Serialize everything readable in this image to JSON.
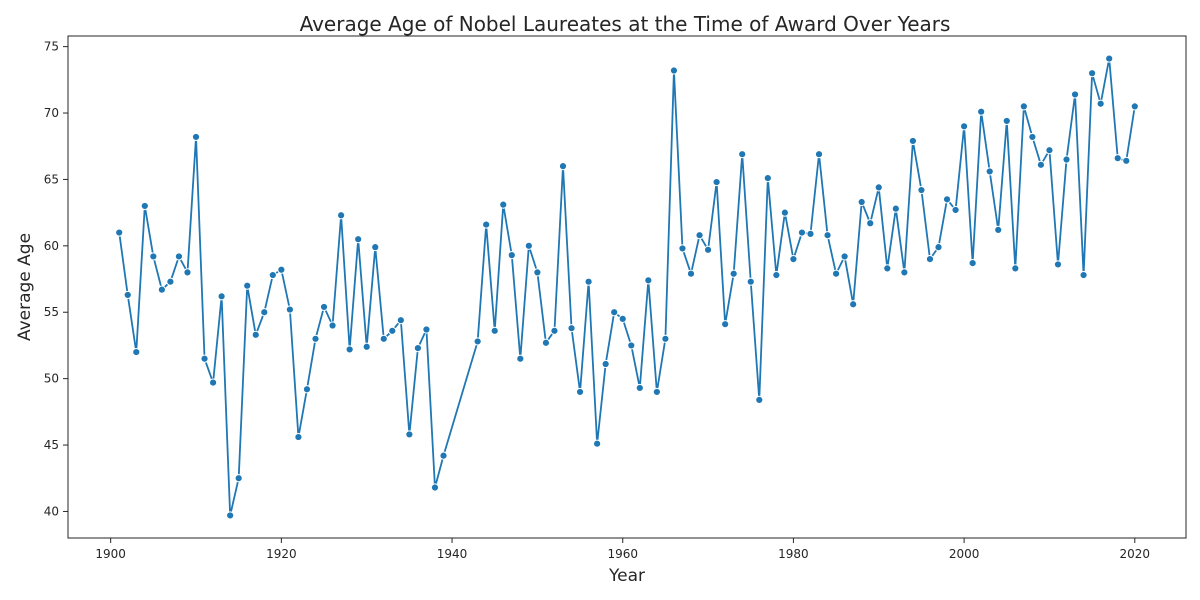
{
  "chart_data": {
    "type": "line",
    "title": "Average Age of Nobel Laureates at the Time of Award Over Years",
    "xlabel": "Year",
    "ylabel": "Average Age",
    "xlim": [
      1895,
      2026
    ],
    "ylim": [
      38,
      75.8
    ],
    "xticks": [
      1900,
      1920,
      1940,
      1960,
      1980,
      2000,
      2020
    ],
    "yticks": [
      40,
      45,
      50,
      55,
      60,
      65,
      70,
      75
    ],
    "grid": false,
    "legend": "none",
    "marker": "circle",
    "color": "#1f77b4",
    "x": [
      1901,
      1902,
      1903,
      1904,
      1905,
      1906,
      1907,
      1908,
      1909,
      1910,
      1911,
      1912,
      1913,
      1914,
      1915,
      1916,
      1917,
      1918,
      1919,
      1920,
      1921,
      1922,
      1923,
      1924,
      1925,
      1926,
      1927,
      1928,
      1929,
      1930,
      1931,
      1932,
      1933,
      1934,
      1935,
      1936,
      1937,
      1938,
      1939,
      1943,
      1944,
      1945,
      1946,
      1947,
      1948,
      1949,
      1950,
      1951,
      1952,
      1953,
      1954,
      1955,
      1956,
      1957,
      1958,
      1959,
      1960,
      1961,
      1962,
      1963,
      1964,
      1965,
      1966,
      1967,
      1968,
      1969,
      1970,
      1971,
      1972,
      1973,
      1974,
      1975,
      1976,
      1977,
      1978,
      1979,
      1980,
      1981,
      1982,
      1983,
      1984,
      1985,
      1986,
      1987,
      1988,
      1989,
      1990,
      1991,
      1992,
      1993,
      1994,
      1995,
      1996,
      1997,
      1998,
      1999,
      2000,
      2001,
      2002,
      2003,
      2004,
      2005,
      2006,
      2007,
      2008,
      2009,
      2010,
      2011,
      2012,
      2013,
      2014,
      2015,
      2016,
      2017,
      2018,
      2019,
      2020
    ],
    "y": [
      61.0,
      56.3,
      52.0,
      63.0,
      59.2,
      56.7,
      57.3,
      59.2,
      58.0,
      68.2,
      51.5,
      49.7,
      56.2,
      39.7,
      42.5,
      57.0,
      53.3,
      55.0,
      57.8,
      58.2,
      55.2,
      45.6,
      49.2,
      53.0,
      55.4,
      54.0,
      62.3,
      52.2,
      60.5,
      52.4,
      59.9,
      53.0,
      53.6,
      54.4,
      45.8,
      52.3,
      53.7,
      41.8,
      44.2,
      52.8,
      61.6,
      53.6,
      63.1,
      59.3,
      51.5,
      60.0,
      58.0,
      52.7,
      53.6,
      66.0,
      53.8,
      49.0,
      57.3,
      45.1,
      51.1,
      55.0,
      54.5,
      52.5,
      49.3,
      57.4,
      49.0,
      53.0,
      73.2,
      59.8,
      57.9,
      60.8,
      59.7,
      64.8,
      54.1,
      57.9,
      66.9,
      57.3,
      48.4,
      65.1,
      57.8,
      62.5,
      59.0,
      61.0,
      60.9,
      66.9,
      60.8,
      57.9,
      59.2,
      55.6,
      63.3,
      61.7,
      64.4,
      58.3,
      62.8,
      58.0,
      67.9,
      64.2,
      59.0,
      59.9,
      63.5,
      62.7,
      69.0,
      58.7,
      70.1,
      65.6,
      61.2,
      69.4,
      58.3,
      70.5,
      68.2,
      66.1,
      67.2,
      58.6,
      66.5,
      71.4,
      57.8,
      73.0,
      70.7,
      74.1,
      66.6,
      66.4,
      70.5
    ]
  }
}
